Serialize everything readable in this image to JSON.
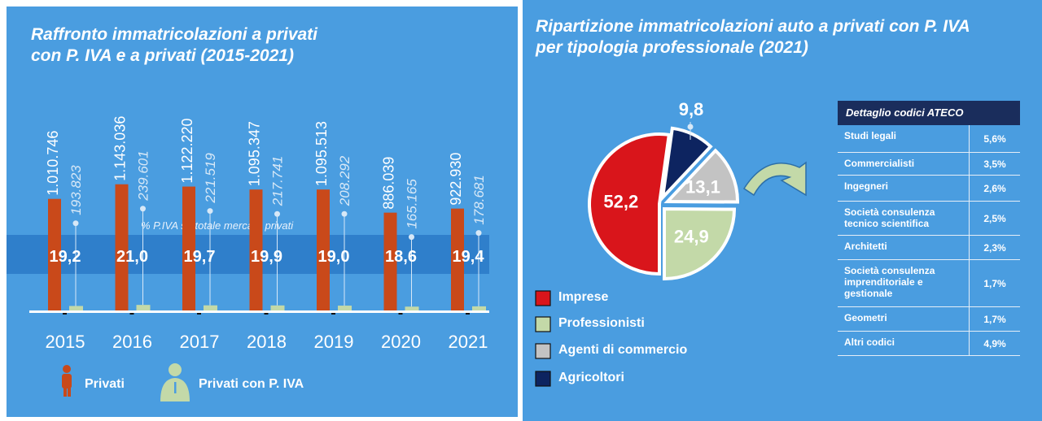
{
  "left": {
    "title_line1": "Raffronto immatricolazioni a privati",
    "title_line2": "con P. IVA e a privati (2015-2021)",
    "band_label": "% P.IVA su totale mercato privati",
    "legend": [
      "Privati",
      "Privati con P. IVA"
    ]
  },
  "right": {
    "title_line1": "Ripartizione immatricolazioni auto a privati con P. IVA",
    "title_line2": "per tipologia professionale (2021)",
    "table_header": "Dettaglio codici ATECO",
    "table_rows": [
      {
        "name": "Studi legali",
        "value": "5,6%"
      },
      {
        "name": "Commercialisti",
        "value": "3,5%"
      },
      {
        "name": "Ingegneri",
        "value": "2,6%"
      },
      {
        "name": "Società consulenza tecnico scientifica",
        "value": "2,5%"
      },
      {
        "name": "Architetti",
        "value": "2,3%"
      },
      {
        "name": "Società consulenza imprenditoriale e gestionale",
        "value": "1,7%"
      },
      {
        "name": "Geometri",
        "value": "1,7%"
      },
      {
        "name": "Altri codici",
        "value": "4,9%"
      }
    ]
  },
  "colors": {
    "background": "#4a9de0",
    "privati": "#c9491a",
    "piva": "#c3d9a8",
    "imprese": "#d9151b",
    "professionisti": "#c3d9a8",
    "agenti": "#c3c3c3",
    "agricoltori": "#0d2460",
    "band": "#2f7fcb",
    "table_header": "#1a2d5c"
  },
  "chart_data": [
    {
      "type": "bar",
      "categories": [
        "2015",
        "2016",
        "2017",
        "2018",
        "2019",
        "2020",
        "2021"
      ],
      "series": [
        {
          "name": "Privati",
          "values": [
            1010746,
            1143036,
            1122220,
            1095347,
            1095513,
            886039,
            922930
          ],
          "labels": [
            "1.010.746",
            "1.143.036",
            "1.122.220",
            "1.095.347",
            "1.095.513",
            "886.039",
            "922.930"
          ]
        },
        {
          "name": "Privati con P. IVA",
          "values": [
            193823,
            239601,
            221519,
            217741,
            208292,
            165165,
            178681
          ],
          "labels": [
            "193.823",
            "239.601",
            "221.519",
            "217.741",
            "208.292",
            "165.165",
            "178.681"
          ]
        }
      ],
      "percent_labels": [
        "19,2",
        "21,0",
        "19,7",
        "19,9",
        "19,0",
        "18,6",
        "19,4"
      ],
      "title": "Raffronto immatricolazioni a privati con P. IVA e a privati (2015-2021)",
      "ylim": [
        0,
        1200000
      ]
    },
    {
      "type": "pie",
      "categories": [
        "Imprese",
        "Professionisti",
        "Agenti di commercio",
        "Agricoltori"
      ],
      "values": [
        52.2,
        24.9,
        13.1,
        9.8
      ],
      "labels": [
        "52,2",
        "24,9",
        "13,1",
        "9,8"
      ],
      "title": "Ripartizione immatricolazioni auto a privati con P. IVA per tipologia professionale (2021)",
      "legend": "bottom-left"
    }
  ]
}
